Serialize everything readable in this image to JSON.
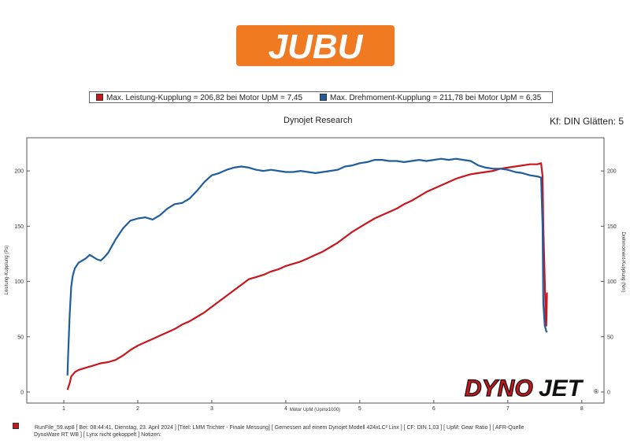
{
  "logo": {
    "text": "JUBU",
    "bg_color": "#f07a21",
    "text_color": "#ffffff"
  },
  "legend": {
    "power": "Max. Leistung-Kupplung = 206,82 bei Motor UpM = 7,45",
    "torque": "Max. Drehmoment-Kupplung = 211,78 bei Motor UpM = 6,35"
  },
  "subtitle": "Dynojet Research",
  "kf": "Kf: DIN Glätten: 5",
  "dynojet_logo": {
    "part1": "DYNO",
    "part2": "JET",
    "mark": "®"
  },
  "footer": {
    "line1": "RunFile_59.wp8 [ Bei: 08:44:41, Dienstag, 23. April 2024 ] [Titel: LMM Trichter - Finale Messung]  [ Gemessen auf einem Dynojet Modell 424xLC² Linx ] [ CF: DIN 1,03 ] [ UpM: Gear Ratio ] [ AFR-Quelle",
    "line2": "DynoWare RT WB ] [ Lynx nicht gekoppelt ] Notizen:"
  },
  "chart_data": {
    "type": "line",
    "xlabel": "Motor UpM (Upmx1000)",
    "ylabel": "Leistung-Kupplung (Ps)",
    "y2label": "Drehmoment-Kupplung (Nm)",
    "xlim": [
      0.5,
      8.3
    ],
    "ylim": [
      -10,
      230
    ],
    "x_ticks": [
      1,
      2,
      3,
      4,
      5,
      6,
      7,
      8
    ],
    "y_ticks": [
      0,
      50,
      100,
      150,
      200
    ],
    "grid": false,
    "legend_position": "top",
    "series": [
      {
        "color": "#c8161d",
        "x": [
          1.05,
          1.08,
          1.1,
          1.15,
          1.2,
          1.3,
          1.4,
          1.5,
          1.6,
          1.7,
          1.8,
          1.9,
          2.0,
          2.1,
          2.2,
          2.3,
          2.4,
          2.5,
          2.6,
          2.7,
          2.8,
          2.9,
          3.0,
          3.1,
          3.2,
          3.3,
          3.4,
          3.5,
          3.6,
          3.7,
          3.8,
          3.9,
          4.0,
          4.1,
          4.2,
          4.3,
          4.4,
          4.5,
          4.6,
          4.7,
          4.8,
          4.9,
          5.0,
          5.1,
          5.2,
          5.3,
          5.4,
          5.5,
          5.6,
          5.7,
          5.8,
          5.9,
          6.0,
          6.1,
          6.2,
          6.3,
          6.4,
          6.5,
          6.6,
          6.7,
          6.8,
          6.9,
          7.0,
          7.1,
          7.2,
          7.3,
          7.4,
          7.45,
          7.47,
          7.48,
          7.5,
          7.51,
          7.52,
          7.53
        ],
        "values": [
          2,
          8,
          14,
          18,
          20,
          22,
          24,
          26,
          27,
          29,
          33,
          38,
          42,
          45,
          48,
          51,
          54,
          57,
          61,
          64,
          68,
          72,
          77,
          82,
          87,
          92,
          97,
          102,
          104,
          106,
          109,
          111,
          114,
          116,
          118,
          121,
          124,
          127,
          131,
          135,
          140,
          145,
          149,
          153,
          157,
          160,
          163,
          166,
          170,
          173,
          177,
          181,
          184,
          187,
          190,
          193,
          195,
          197,
          198,
          199,
          200,
          202,
          203,
          204,
          205,
          206,
          206,
          207,
          195,
          150,
          100,
          70,
          60,
          90
        ]
      },
      {
        "color": "#1f5d9e",
        "x": [
          1.05,
          1.06,
          1.08,
          1.1,
          1.12,
          1.15,
          1.2,
          1.25,
          1.3,
          1.35,
          1.4,
          1.45,
          1.5,
          1.55,
          1.6,
          1.7,
          1.8,
          1.9,
          2.0,
          2.1,
          2.2,
          2.3,
          2.4,
          2.5,
          2.6,
          2.7,
          2.8,
          2.9,
          3.0,
          3.1,
          3.2,
          3.3,
          3.4,
          3.5,
          3.6,
          3.7,
          3.8,
          3.9,
          4.0,
          4.1,
          4.2,
          4.3,
          4.4,
          4.5,
          4.6,
          4.7,
          4.8,
          4.9,
          5.0,
          5.1,
          5.2,
          5.3,
          5.4,
          5.5,
          5.6,
          5.7,
          5.8,
          5.9,
          6.0,
          6.1,
          6.2,
          6.3,
          6.4,
          6.5,
          6.6,
          6.7,
          6.8,
          6.9,
          7.0,
          7.1,
          7.2,
          7.3,
          7.4,
          7.45,
          7.47,
          7.48,
          7.5,
          7.52,
          7.53
        ],
        "values": [
          15,
          35,
          70,
          95,
          105,
          112,
          117,
          119,
          121,
          124,
          122,
          120,
          119,
          122,
          126,
          138,
          148,
          155,
          157,
          158,
          156,
          160,
          166,
          170,
          171,
          175,
          182,
          190,
          196,
          198,
          201,
          203,
          204,
          203,
          201,
          200,
          201,
          200,
          199,
          199,
          200,
          199,
          198,
          199,
          200,
          201,
          204,
          205,
          207,
          208,
          210,
          210,
          209,
          209,
          208,
          209,
          210,
          209,
          210,
          211,
          210,
          211,
          210,
          209,
          205,
          203,
          202,
          202,
          201,
          199,
          198,
          196,
          195,
          194,
          150,
          80,
          60,
          55,
          54
        ]
      }
    ]
  }
}
